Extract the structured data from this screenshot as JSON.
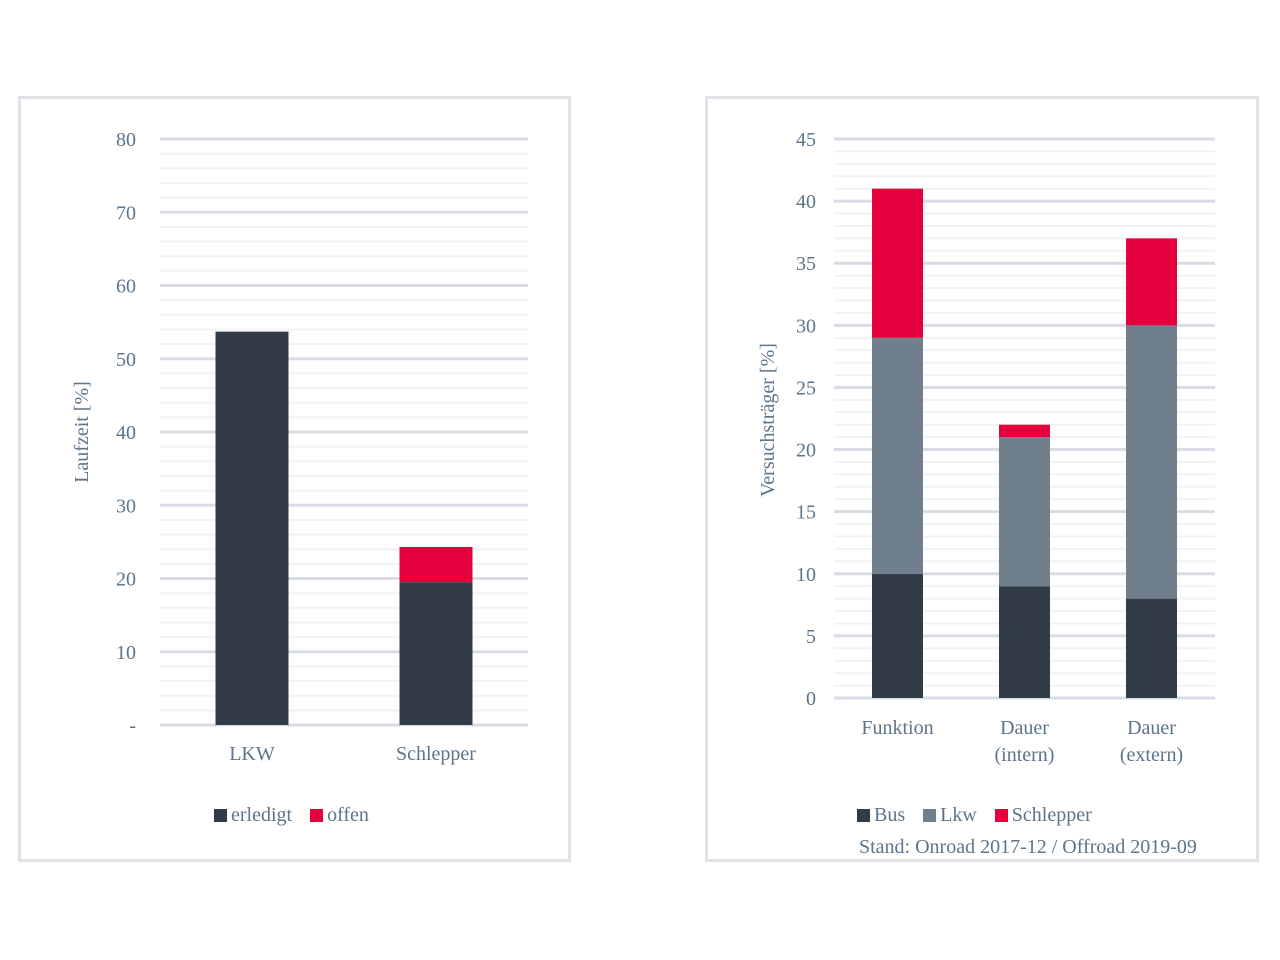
{
  "chart_data": [
    {
      "type": "bar",
      "stacked": true,
      "title": "",
      "xlabel": "",
      "ylabel": "Laufzeit [%]",
      "ylim": [
        0,
        80
      ],
      "y_ticks": [
        "-",
        "10",
        "20",
        "30",
        "40",
        "50",
        "60",
        "70",
        "80"
      ],
      "categories": [
        "LKW",
        "Schlepper"
      ],
      "series": [
        {
          "name": "erledigt",
          "color": "#323c49",
          "values": [
            53.7,
            19.5
          ]
        },
        {
          "name": "offen",
          "color": "#e4003d",
          "values": [
            0,
            4.8
          ]
        }
      ],
      "legend_position": "bottom"
    },
    {
      "type": "bar",
      "stacked": true,
      "title": "",
      "xlabel": "",
      "ylabel": "Versuchsträger [%]",
      "ylim": [
        0,
        45
      ],
      "y_ticks": [
        "0",
        "5",
        "10",
        "15",
        "20",
        "25",
        "30",
        "35",
        "40",
        "45"
      ],
      "categories": [
        "Funktion",
        "Dauer (intern)",
        "Dauer (extern)"
      ],
      "category_lines": [
        [
          "Funktion"
        ],
        [
          "Dauer",
          "(intern)"
        ],
        [
          "Dauer",
          "(extern)"
        ]
      ],
      "series": [
        {
          "name": "Bus",
          "color": "#323c49",
          "values": [
            10,
            9,
            8
          ]
        },
        {
          "name": "Lkw",
          "color": "#6f7f8c",
          "values": [
            19,
            12,
            22
          ]
        },
        {
          "name": "Schlepper",
          "color": "#e4003d",
          "values": [
            12,
            1,
            7
          ]
        }
      ],
      "legend_position": "bottom",
      "footnote": "Stand: Onroad 2017-12 / Offroad 2019-09"
    }
  ]
}
